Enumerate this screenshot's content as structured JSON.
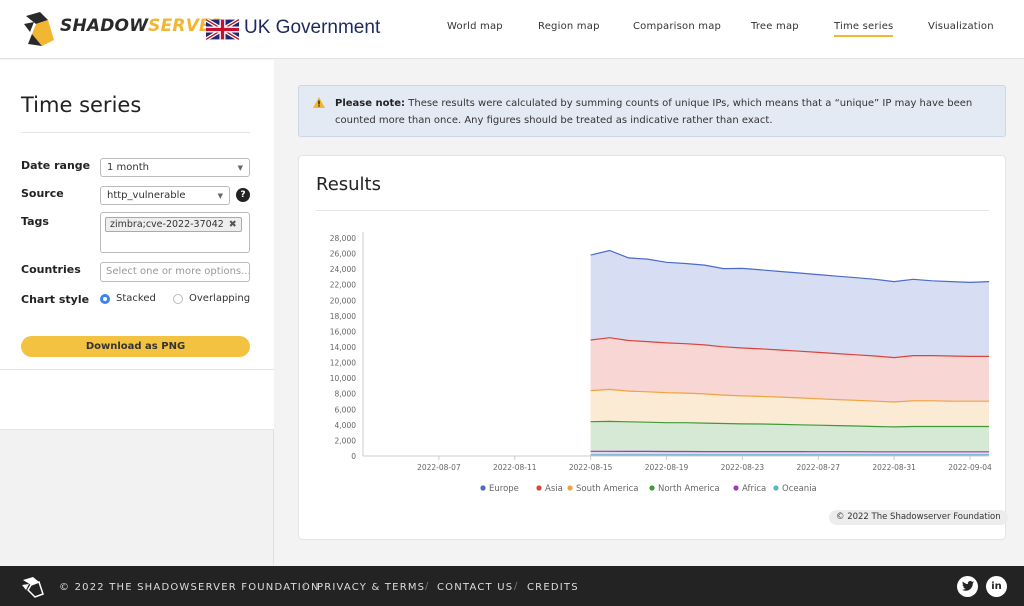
{
  "header": {
    "brand_shadow": "SHADOW",
    "brand_server": "SERVER",
    "gov_label": "UK Government",
    "nav": [
      "World map",
      "Region map",
      "Comparison map",
      "Tree map",
      "Time series",
      "Visualization"
    ],
    "active_nav": "Time series"
  },
  "sidebar": {
    "title": "Time series",
    "date_range": {
      "label": "Date range",
      "value": "1 month"
    },
    "source": {
      "label": "Source",
      "value": "http_vulnerable",
      "help": "?"
    },
    "tags": {
      "label": "Tags",
      "chip": "zimbra;cve-2022-37042",
      "chip_remove": "✖"
    },
    "countries": {
      "label": "Countries",
      "placeholder": "Select one or more options..."
    },
    "chart_style": {
      "label": "Chart style",
      "options": [
        "Stacked",
        "Overlapping"
      ],
      "selected": "Stacked"
    },
    "download_label": "Download as PNG"
  },
  "notice": {
    "bold": "Please note:",
    "text": " These results were calculated by summing counts of unique IPs, which means that a “unique” IP may have been counted more than once. Any figures should be treated as indicative rather than exact."
  },
  "results": {
    "title": "Results",
    "credit": "© 2022 The Shadowserver Foundation"
  },
  "chart_data": {
    "type": "area",
    "stacked": true,
    "x_ticks": [
      "2022-08-07",
      "2022-08-11",
      "2022-08-15",
      "2022-08-19",
      "2022-08-23",
      "2022-08-27",
      "2022-08-31",
      "2022-09-04"
    ],
    "y_ticks": [
      "0",
      "2,000",
      "4,000",
      "6,000",
      "8,000",
      "10,000",
      "12,000",
      "14,000",
      "16,000",
      "18,000",
      "20,000",
      "22,000",
      "24,000",
      "26,000",
      "28,000"
    ],
    "ylim": [
      0,
      28000
    ],
    "x": [
      "2022-08-15",
      "2022-08-16",
      "2022-08-17",
      "2022-08-18",
      "2022-08-19",
      "2022-08-20",
      "2022-08-21",
      "2022-08-22",
      "2022-08-23",
      "2022-08-24",
      "2022-08-25",
      "2022-08-26",
      "2022-08-27",
      "2022-08-28",
      "2022-08-29",
      "2022-08-30",
      "2022-08-31",
      "2022-09-01",
      "2022-09-02",
      "2022-09-03",
      "2022-09-04",
      "2022-09-05"
    ],
    "series": [
      {
        "name": "Oceania",
        "color": "#5ab5c9",
        "values": [
          150,
          150,
          150,
          150,
          150,
          150,
          150,
          150,
          150,
          150,
          150,
          150,
          150,
          150,
          150,
          150,
          150,
          150,
          150,
          150,
          150,
          150
        ]
      },
      {
        "name": "Africa",
        "color": "#9b3bbf",
        "values": [
          450,
          450,
          440,
          440,
          430,
          430,
          420,
          420,
          420,
          410,
          410,
          410,
          400,
          400,
          400,
          390,
          390,
          390,
          390,
          390,
          390,
          390
        ]
      },
      {
        "name": "North America",
        "color": "#3f9a3a",
        "values": [
          3800,
          3850,
          3800,
          3750,
          3700,
          3700,
          3650,
          3600,
          3550,
          3550,
          3500,
          3450,
          3400,
          3350,
          3300,
          3250,
          3200,
          3250,
          3250,
          3250,
          3250,
          3250
        ]
      },
      {
        "name": "South America",
        "color": "#f0a33c",
        "values": [
          4000,
          4100,
          3950,
          3900,
          3850,
          3800,
          3750,
          3650,
          3600,
          3550,
          3500,
          3450,
          3400,
          3350,
          3300,
          3250,
          3200,
          3300,
          3300,
          3250,
          3250,
          3250
        ]
      },
      {
        "name": "Asia",
        "color": "#d9453b",
        "values": [
          6500,
          6650,
          6500,
          6450,
          6400,
          6350,
          6300,
          6200,
          6150,
          6100,
          6050,
          6000,
          5950,
          5900,
          5850,
          5800,
          5700,
          5800,
          5800,
          5800,
          5750,
          5750
        ]
      },
      {
        "name": "Europe",
        "color": "#4a6bc7",
        "values": [
          10900,
          11200,
          10600,
          10600,
          10350,
          10300,
          10250,
          10050,
          10230,
          10140,
          10090,
          10040,
          10000,
          9950,
          9900,
          9860,
          9760,
          9800,
          9610,
          9560,
          9510,
          9610
        ]
      }
    ],
    "legend": [
      "Europe",
      "Asia",
      "South America",
      "North America",
      "Africa",
      "Oceania"
    ],
    "legend_position": "bottom"
  },
  "footer": {
    "copyright": "© 2022 THE SHADOWSERVER FOUNDATION",
    "links": [
      "PRIVACY & TERMS",
      "CONTACT US",
      "CREDITS"
    ],
    "social": [
      "twitter-icon",
      "linkedin-icon"
    ],
    "linkedin_glyph": "in"
  }
}
